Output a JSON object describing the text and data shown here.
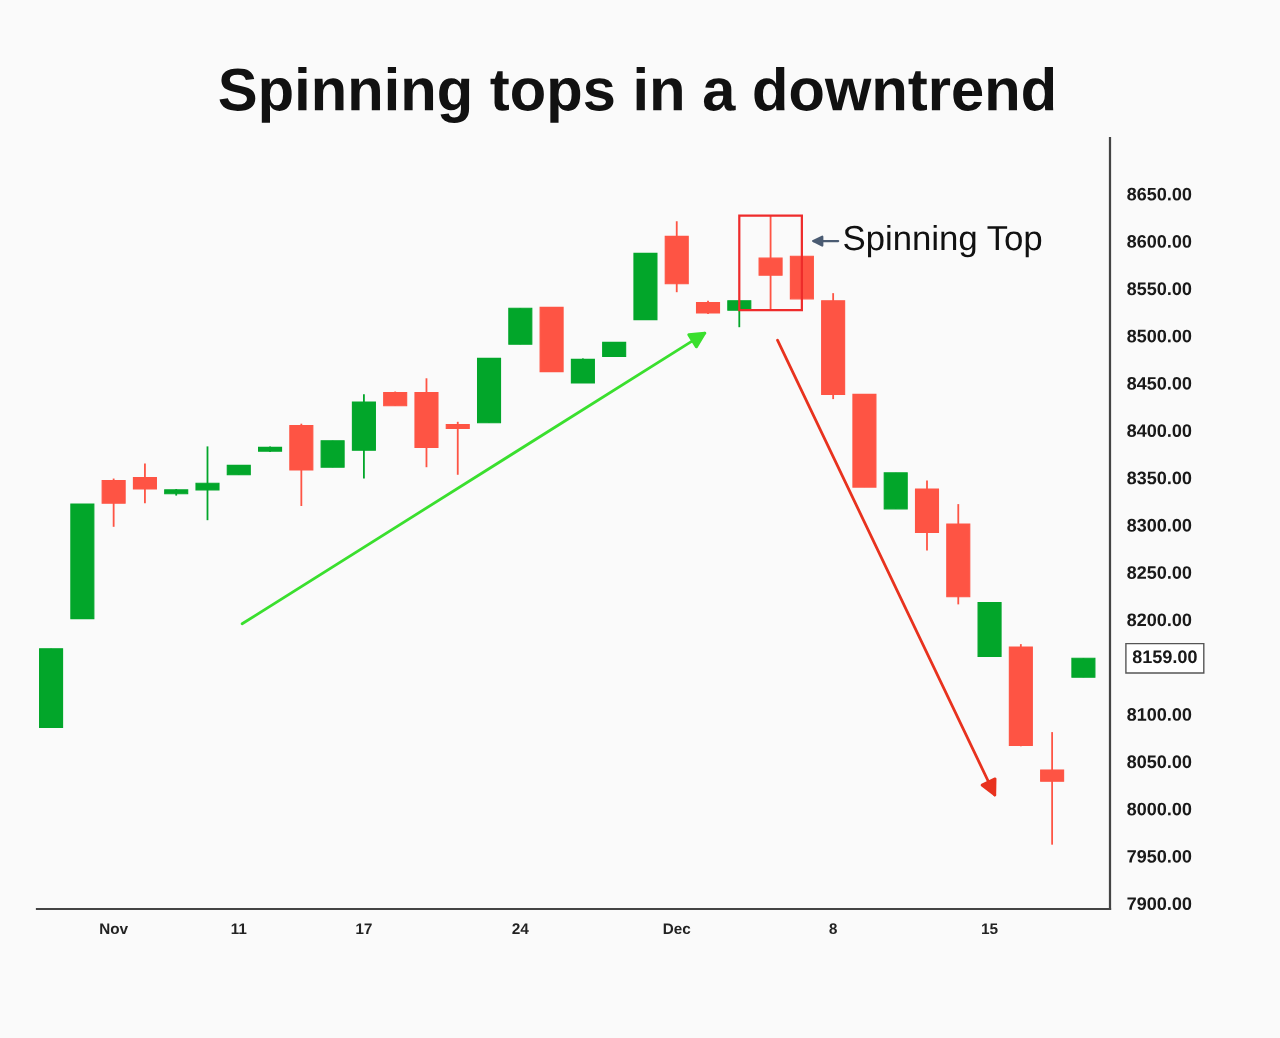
{
  "chart_data": {
    "type": "candlestick",
    "title": "Spinning tops in a downtrend",
    "categories": [
      null,
      null,
      "Nov",
      null,
      null,
      null,
      "11",
      null,
      null,
      null,
      "17",
      null,
      null,
      null,
      null,
      "24",
      null,
      null,
      null,
      null,
      "Dec",
      null,
      null,
      null,
      null,
      "8",
      null,
      null,
      null,
      null,
      "15",
      null,
      null,
      null
    ],
    "ohlc": [
      [
        8086,
        8169,
        8086,
        8169
      ],
      [
        8201,
        8322,
        8201,
        8322
      ],
      [
        8347,
        8349,
        8298,
        8323
      ],
      [
        8350,
        8365,
        8323,
        8338
      ],
      [
        8333,
        8338,
        8331,
        8337
      ],
      [
        8337,
        8383,
        8305,
        8344
      ],
      [
        8353,
        8363,
        8353,
        8363
      ],
      [
        8378,
        8383,
        8377,
        8382
      ],
      [
        8405,
        8407,
        8320,
        8358
      ],
      [
        8361,
        8389,
        8361,
        8389
      ],
      [
        8379,
        8438,
        8349,
        8430
      ],
      [
        8440,
        8441,
        8426,
        8426
      ],
      [
        8440,
        8455,
        8361,
        8382
      ],
      [
        8406,
        8409,
        8353,
        8402
      ],
      [
        8408,
        8476,
        8408,
        8476
      ],
      [
        8491,
        8529,
        8491,
        8529
      ],
      [
        8530,
        8530,
        8462,
        8462
      ],
      [
        8450,
        8476,
        8450,
        8475
      ],
      [
        8478,
        8493,
        8478,
        8493
      ],
      [
        8517,
        8587,
        8517,
        8587
      ],
      [
        8605,
        8621,
        8546,
        8555
      ],
      [
        8535,
        8537,
        8523,
        8524
      ],
      [
        8527,
        8537,
        8509,
        8537
      ],
      [
        8582,
        8627,
        8527,
        8564
      ],
      [
        8584,
        8584,
        8539,
        8539
      ],
      [
        8537,
        8545,
        8433,
        8438
      ],
      [
        8438,
        8438,
        8340,
        8340
      ],
      [
        8317,
        8355,
        8317,
        8355
      ],
      [
        8338,
        8347,
        8273,
        8292
      ],
      [
        8301,
        8322,
        8216,
        8224
      ],
      [
        8161,
        8218,
        8161,
        8218
      ],
      [
        8171,
        8174,
        8066,
        8067
      ],
      [
        8041,
        8081,
        7962,
        8029
      ],
      [
        8139,
        8159,
        8139,
        8159
      ]
    ],
    "colors": [
      "#02a62a",
      "#02a62a",
      "#fe5444",
      "#fe5444",
      "#02a62a",
      "#02a62a",
      "#02a62a",
      "#02a62a",
      "#fe5444",
      "#02a62a",
      "#02a62a",
      "#fe5444",
      "#fe5444",
      "#fe5444",
      "#02a62a",
      "#02a62a",
      "#fe5444",
      "#02a62a",
      "#02a62a",
      "#02a62a",
      "#fe5444",
      "#fe5444",
      "#02a62a",
      "#fe5444",
      "#fe5444",
      "#fe5444",
      "#fe5444",
      "#02a62a",
      "#fe5444",
      "#fe5444",
      "#02a62a",
      "#fe5444",
      "#fe5444",
      "#02a62a"
    ],
    "ylim": [
      7894,
      8709
    ],
    "yticks": [
      {
        "value": 7900,
        "label": "7900.00"
      },
      {
        "value": 7950,
        "label": "7950.00"
      },
      {
        "value": 8000,
        "label": "8000.00"
      },
      {
        "value": 8050,
        "label": "8050.00"
      },
      {
        "value": 8100,
        "label": "8100.00"
      },
      {
        "value": 8200,
        "label": "8200.00"
      },
      {
        "value": 8250,
        "label": "8250.00"
      },
      {
        "value": 8300,
        "label": "8300.00"
      },
      {
        "value": 8350,
        "label": "8350.00"
      },
      {
        "value": 8400,
        "label": "8400.00"
      },
      {
        "value": 8450,
        "label": "8450.00"
      },
      {
        "value": 8500,
        "label": "8500.00"
      },
      {
        "value": 8550,
        "label": "8550.00"
      },
      {
        "value": 8600,
        "label": "8600.00"
      },
      {
        "value": 8650,
        "label": "8650.00"
      }
    ],
    "annotations": [
      "Spinning Top",
      "8159.00"
    ]
  }
}
